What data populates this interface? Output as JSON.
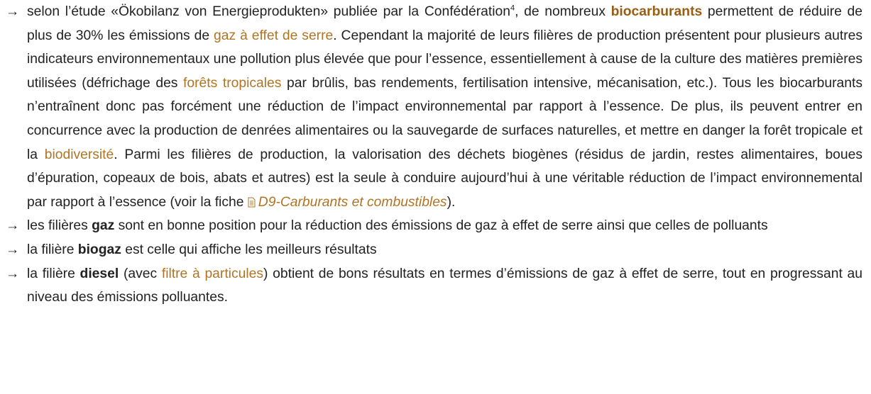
{
  "items": [
    {
      "marker": "→",
      "runs": [
        {
          "text": "selon l’étude «Ökobilanz von Energieprodukten» publiée par la Confédération"
        },
        {
          "sup": "4"
        },
        {
          "text": ", de nombreux "
        },
        {
          "bold": "biocarburants"
        },
        {
          "text": " permettent de réduire de plus de 30% les émissions de "
        },
        {
          "link": "gaz à effet de serre"
        },
        {
          "text": ". Cependant la majorité de leurs filières de production présentent pour plusieurs autres indicateurs environnementaux une pollution plus élevée que pour l’essence, essentiellement à cause de la culture des matières premières utilisées (défrichage des "
        },
        {
          "link": "forêts tropicales"
        },
        {
          "text": " par brûlis, bas rendements, fertilisation intensive, mécanisation, etc.). Tous les biocarburants n’entraînent donc pas forcément une réduction de l’impact environnemental par rapport à l’essence. De plus, ils peuvent entrer en concurrence avec la production de denrées alimentaires ou la sauvegarde de surfaces naturelles, et mettre en danger la forêt tropicale et la "
        },
        {
          "link": "biodiversité"
        },
        {
          "text": ". Parmi les filières de production, la valorisation des déchets biogènes (résidus de jardin, restes alimentaires, boues d’épuration, copeaux de bois, abats et autres) est la seule à conduire aujourd’hui à une véritable réduction de l’impact environnemental par rapport à l’essence (voir la fiche "
        },
        {
          "doc": "D9-Carburants et combustibles"
        },
        {
          "text": ")."
        }
      ]
    },
    {
      "marker": "→",
      "runs": [
        {
          "text": "les filières "
        },
        {
          "bold": "gaz"
        },
        {
          "text": " sont en bonne position pour la réduction des émissions de gaz à effet de serre ainsi que celles de polluants"
        }
      ]
    },
    {
      "marker": "→",
      "runs": [
        {
          "text": "la filière "
        },
        {
          "bold": "biogaz"
        },
        {
          "text": " est celle qui affiche les meilleurs résultats"
        }
      ]
    },
    {
      "marker": "→",
      "runs": [
        {
          "text": "la filière "
        },
        {
          "bold": "diesel"
        },
        {
          "text": " (avec "
        },
        {
          "link": "filtre à particules"
        },
        {
          "text": ") obtient de bons résultats en termes d’émissions de gaz à effet de serre, tout en progressant au niveau des émissions polluantes."
        }
      ]
    }
  ]
}
